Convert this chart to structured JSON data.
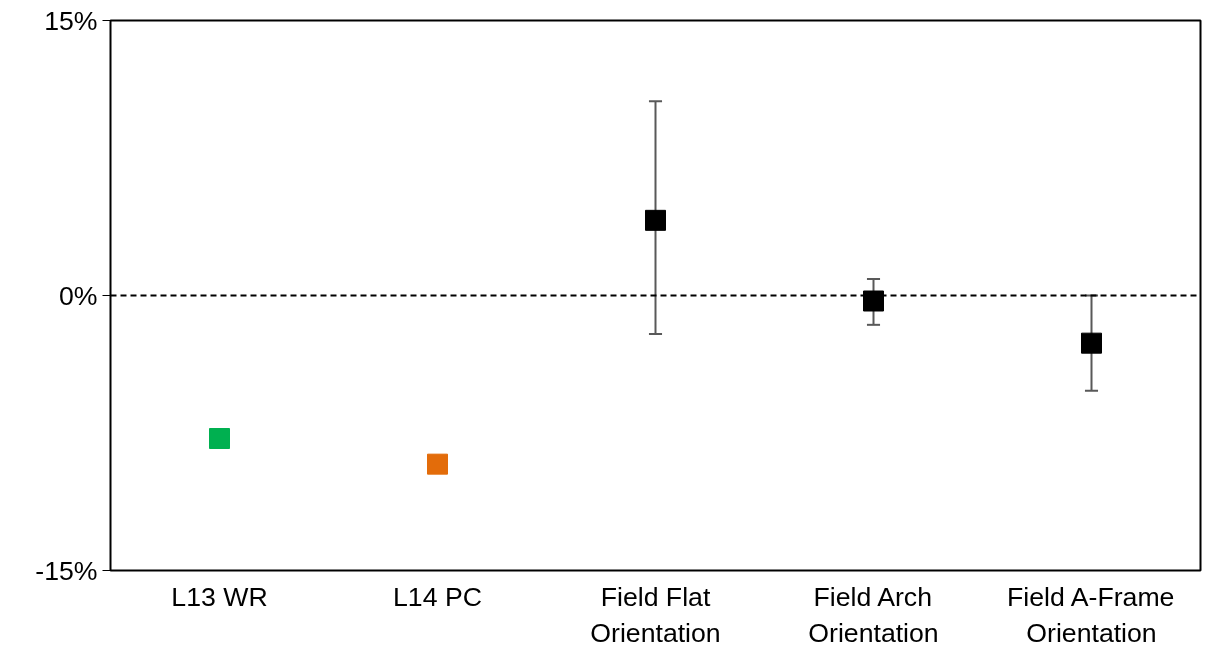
{
  "chart_data": {
    "type": "scatter",
    "categories": [
      "L13 WR",
      "L14 PC",
      "Field Flat Orientation",
      "Field Arch Orientation",
      "Field A-Frame Orientation"
    ],
    "values": [
      -7.8,
      -9.2,
      4.1,
      -0.3,
      -2.6
    ],
    "colors": [
      "#00b050",
      "#e36c0a",
      "#000000",
      "#000000",
      "#000000"
    ],
    "errors": [
      null,
      null,
      [
        -2.1,
        10.6
      ],
      [
        -1.6,
        0.9
      ],
      [
        -5.2,
        0
      ]
    ],
    "ylim": [
      -15,
      15
    ],
    "yticks": [
      {
        "value": -15,
        "label": "-15%"
      },
      {
        "value": 0,
        "label": "0%"
      },
      {
        "value": 15,
        "label": "15%"
      }
    ],
    "ref_lines": [
      {
        "axis": "y",
        "value": 0,
        "color": "#000000",
        "line_style": "dashed"
      }
    ],
    "marker": "square",
    "grid": false
  }
}
